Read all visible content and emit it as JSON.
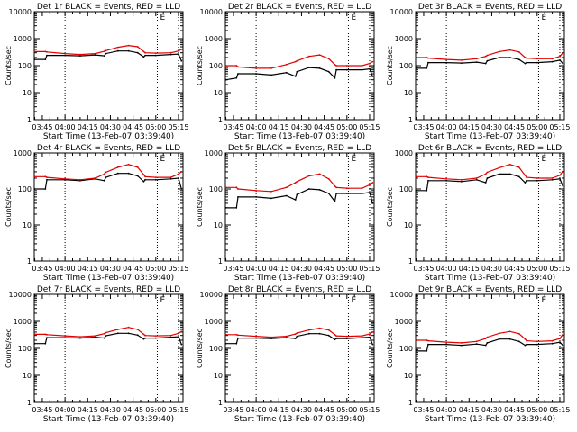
{
  "ylabel": "Counts/sec",
  "xlabel": "Start Time (13-Feb-07 03:39:40)",
  "x_tick_labels": [
    "03:45",
    "04:00",
    "04:15",
    "04:30",
    "04:45",
    "05:00",
    "05:15"
  ],
  "y_tick_labels": [
    "1",
    "10",
    "100",
    "1000",
    "10000"
  ],
  "series_colors": {
    "events": "#000000",
    "lld": "#e00000"
  },
  "chart_data": [
    {
      "type": "line",
      "title": "Det 1r BLACK = Events, RED = LLD",
      "corner_mark": "E",
      "log_y": true,
      "ylim": [
        1,
        10000
      ],
      "xlim_minutes": [
        "03:39:40",
        "05:18:00"
      ],
      "vertical_markers": [
        "04:00",
        "05:01",
        "05:15"
      ],
      "x": [
        "03:40",
        "03:47",
        "03:48",
        "04:00",
        "04:10",
        "04:20",
        "04:26",
        "04:27",
        "04:35",
        "04:42",
        "04:48",
        "04:52",
        "04:53",
        "05:00",
        "05:10",
        "05:15",
        "05:17"
      ],
      "series": [
        {
          "key": "events",
          "values": [
            170,
            170,
            240,
            240,
            230,
            250,
            230,
            280,
            350,
            350,
            300,
            210,
            240,
            240,
            260,
            270,
            150
          ]
        },
        {
          "key": "lld",
          "values": [
            330,
            330,
            320,
            280,
            260,
            280,
            340,
            360,
            480,
            560,
            500,
            330,
            300,
            290,
            300,
            350,
            400
          ]
        }
      ]
    },
    {
      "type": "line",
      "title": "Det 2r BLACK = Events, RED = LLD",
      "corner_mark": "E",
      "log_y": true,
      "ylim": [
        1,
        10000
      ],
      "xlim_minutes": [
        "03:39:40",
        "05:18:00"
      ],
      "vertical_markers": [
        "04:00",
        "05:01",
        "05:15"
      ],
      "x": [
        "03:40",
        "03:47",
        "03:48",
        "04:00",
        "04:10",
        "04:20",
        "04:26",
        "04:27",
        "04:35",
        "04:42",
        "04:48",
        "04:52",
        "04:53",
        "05:00",
        "05:10",
        "05:15",
        "05:17"
      ],
      "series": [
        {
          "key": "events",
          "values": [
            30,
            35,
            50,
            50,
            45,
            55,
            40,
            60,
            85,
            80,
            60,
            35,
            70,
            70,
            70,
            75,
            40
          ]
        },
        {
          "key": "lld",
          "values": [
            100,
            100,
            90,
            80,
            80,
            110,
            140,
            150,
            220,
            250,
            180,
            110,
            100,
            100,
            100,
            120,
            140
          ]
        }
      ]
    },
    {
      "type": "line",
      "title": "Det 3r BLACK = Events, RED = LLD",
      "corner_mark": "E",
      "log_y": true,
      "ylim": [
        1,
        10000
      ],
      "xlim_minutes": [
        "03:39:40",
        "05:18:00"
      ],
      "vertical_markers": [
        "04:00",
        "05:01",
        "05:15"
      ],
      "x": [
        "03:40",
        "03:47",
        "03:48",
        "04:00",
        "04:10",
        "04:20",
        "04:26",
        "04:27",
        "04:35",
        "04:42",
        "04:48",
        "04:52",
        "04:53",
        "05:00",
        "05:10",
        "05:15",
        "05:17"
      ],
      "series": [
        {
          "key": "events",
          "values": [
            80,
            80,
            130,
            130,
            125,
            135,
            120,
            150,
            200,
            200,
            170,
            120,
            130,
            130,
            140,
            160,
            120
          ]
        },
        {
          "key": "lld",
          "values": [
            200,
            200,
            190,
            170,
            160,
            180,
            220,
            240,
            330,
            380,
            320,
            200,
            190,
            180,
            180,
            220,
            300
          ]
        }
      ]
    },
    {
      "type": "line",
      "title": "Det 4r BLACK = Events, RED = LLD",
      "corner_mark": "E",
      "log_y": true,
      "ylim": [
        1,
        1000
      ],
      "xlim_minutes": [
        "03:39:40",
        "05:18:00"
      ],
      "vertical_markers": [
        "04:00",
        "05:01",
        "05:15"
      ],
      "x": [
        "03:40",
        "03:47",
        "03:48",
        "04:00",
        "04:10",
        "04:20",
        "04:26",
        "04:27",
        "04:35",
        "04:42",
        "04:48",
        "04:52",
        "04:53",
        "05:00",
        "05:10",
        "05:15",
        "05:17"
      ],
      "series": [
        {
          "key": "events",
          "values": [
            100,
            100,
            180,
            180,
            170,
            190,
            170,
            210,
            270,
            270,
            230,
            160,
            180,
            180,
            190,
            200,
            100
          ]
        },
        {
          "key": "lld",
          "values": [
            220,
            220,
            210,
            190,
            180,
            200,
            260,
            290,
            400,
            480,
            400,
            250,
            220,
            210,
            210,
            260,
            300
          ]
        }
      ]
    },
    {
      "type": "line",
      "title": "Det 5r BLACK = Events, RED = LLD",
      "corner_mark": "E",
      "log_y": true,
      "ylim": [
        1,
        1000
      ],
      "xlim_minutes": [
        "03:39:40",
        "05:18:00"
      ],
      "vertical_markers": [
        "04:00",
        "05:01",
        "05:15"
      ],
      "x": [
        "03:40",
        "03:47",
        "03:48",
        "04:00",
        "04:10",
        "04:20",
        "04:26",
        "04:27",
        "04:35",
        "04:42",
        "04:48",
        "04:52",
        "04:53",
        "05:00",
        "05:10",
        "05:15",
        "05:17"
      ],
      "series": [
        {
          "key": "events",
          "values": [
            30,
            30,
            60,
            60,
            55,
            65,
            50,
            70,
            100,
            95,
            75,
            45,
            75,
            75,
            75,
            80,
            40
          ]
        },
        {
          "key": "lld",
          "values": [
            110,
            110,
            100,
            90,
            85,
            110,
            150,
            160,
            230,
            260,
            190,
            120,
            110,
            105,
            105,
            130,
            150
          ]
        }
      ]
    },
    {
      "type": "line",
      "title": "Det 6r BLACK = Events, RED = LLD",
      "corner_mark": "E",
      "log_y": true,
      "ylim": [
        1,
        1000
      ],
      "xlim_minutes": [
        "03:39:40",
        "05:18:00"
      ],
      "vertical_markers": [
        "04:00",
        "05:01",
        "05:15"
      ],
      "x": [
        "03:40",
        "03:47",
        "03:48",
        "04:00",
        "04:10",
        "04:20",
        "04:26",
        "04:27",
        "04:35",
        "04:42",
        "04:48",
        "04:52",
        "04:53",
        "05:00",
        "05:10",
        "05:15",
        "05:17"
      ],
      "series": [
        {
          "key": "events",
          "values": [
            90,
            90,
            170,
            170,
            160,
            180,
            150,
            200,
            260,
            260,
            220,
            150,
            170,
            170,
            180,
            190,
            120
          ]
        },
        {
          "key": "lld",
          "values": [
            220,
            220,
            210,
            190,
            180,
            200,
            260,
            290,
            390,
            480,
            400,
            240,
            210,
            200,
            200,
            240,
            310
          ]
        }
      ]
    },
    {
      "type": "line",
      "title": "Det 7r BLACK = Events, RED = LLD",
      "corner_mark": "E",
      "log_y": true,
      "ylim": [
        1,
        10000
      ],
      "xlim_minutes": [
        "03:39:40",
        "05:18:00"
      ],
      "vertical_markers": [
        "04:00",
        "05:01",
        "05:15"
      ],
      "x": [
        "03:40",
        "03:47",
        "03:48",
        "04:00",
        "04:10",
        "04:20",
        "04:26",
        "04:27",
        "04:35",
        "04:42",
        "04:48",
        "04:52",
        "04:53",
        "05:00",
        "05:10",
        "05:15",
        "05:17"
      ],
      "series": [
        {
          "key": "events",
          "values": [
            150,
            150,
            250,
            250,
            240,
            260,
            240,
            290,
            360,
            360,
            310,
            220,
            240,
            240,
            260,
            270,
            140
          ]
        },
        {
          "key": "lld",
          "values": [
            330,
            330,
            320,
            290,
            270,
            290,
            350,
            380,
            500,
            600,
            500,
            330,
            300,
            290,
            300,
            360,
            420
          ]
        }
      ]
    },
    {
      "type": "line",
      "title": "Det 8r BLACK = Events, RED = LLD",
      "corner_mark": "E",
      "log_y": true,
      "ylim": [
        1,
        10000
      ],
      "xlim_minutes": [
        "03:39:40",
        "05:18:00"
      ],
      "vertical_markers": [
        "04:00",
        "05:01",
        "05:15"
      ],
      "x": [
        "03:40",
        "03:47",
        "03:48",
        "04:00",
        "04:10",
        "04:20",
        "04:26",
        "04:27",
        "04:35",
        "04:42",
        "04:48",
        "04:52",
        "04:53",
        "05:00",
        "05:10",
        "05:15",
        "05:17"
      ],
      "series": [
        {
          "key": "events",
          "values": [
            150,
            150,
            240,
            240,
            230,
            250,
            230,
            280,
            350,
            350,
            300,
            210,
            230,
            230,
            250,
            260,
            140
          ]
        },
        {
          "key": "lld",
          "values": [
            320,
            320,
            310,
            280,
            260,
            280,
            340,
            370,
            480,
            560,
            480,
            320,
            290,
            280,
            290,
            340,
            400
          ]
        }
      ]
    },
    {
      "type": "line",
      "title": "Det 9r BLACK = Events, RED = LLD",
      "corner_mark": "E",
      "log_y": true,
      "ylim": [
        1,
        10000
      ],
      "xlim_minutes": [
        "03:39:40",
        "05:18:00"
      ],
      "vertical_markers": [
        "04:00",
        "05:01",
        "05:15"
      ],
      "x": [
        "03:40",
        "03:47",
        "03:48",
        "04:00",
        "04:10",
        "04:20",
        "04:26",
        "04:27",
        "04:35",
        "04:42",
        "04:48",
        "04:52",
        "04:53",
        "05:00",
        "05:10",
        "05:15",
        "05:17"
      ],
      "series": [
        {
          "key": "events",
          "values": [
            80,
            80,
            140,
            140,
            130,
            145,
            130,
            160,
            220,
            220,
            180,
            130,
            140,
            140,
            150,
            170,
            130
          ]
        },
        {
          "key": "lld",
          "values": [
            200,
            200,
            190,
            170,
            160,
            180,
            230,
            260,
            360,
            420,
            350,
            220,
            190,
            180,
            190,
            230,
            330
          ]
        }
      ]
    }
  ]
}
